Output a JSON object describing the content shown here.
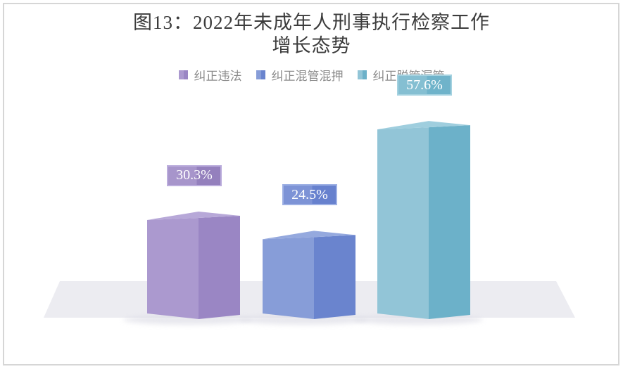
{
  "frame": {
    "background": "#ffffff",
    "border_color": "#d6d6d6"
  },
  "chart_data": {
    "type": "bar",
    "subtype": "3d-clustered-column",
    "title": "图13：2022年未成年人刑事执行检察工作增长态势",
    "title_lines": [
      "图13：2022年未成年人刑事执行检察工作",
      "增长态势"
    ],
    "title_color": "#3c3c3c",
    "unit": "%",
    "legend_position": "top",
    "legend_text_color": "#8c8c8c",
    "axes": {
      "x_visible": false,
      "y_visible": false,
      "gridlines": false
    },
    "ylim": [
      0,
      65
    ],
    "floor_color": "#ececf1",
    "shadow_color": "#d9d9e3",
    "categories": [
      "纠正违法",
      "纠正混管混押",
      "纠正脱管漏管"
    ],
    "values": [
      30.3,
      24.5,
      57.6
    ],
    "series": [
      {
        "name": "纠正违法",
        "value": 30.3,
        "label": "30.3%",
        "color_left": "#ab99cf",
        "color_right": "#9a86c4",
        "color_top": "#b7a8d8",
        "label_bg_left": "#a795cb",
        "label_bg_right": "#9480bd",
        "label_border": "#bcaedd",
        "label_text_color": "#ffffff"
      },
      {
        "name": "纠正混管混押",
        "value": 24.5,
        "label": "24.5%",
        "color_left": "#879dd8",
        "color_right": "#6a84ce",
        "color_top": "#95a9de",
        "label_bg_left": "#7d93d6",
        "label_bg_right": "#6781ce",
        "label_border": "#9db0e4",
        "label_text_color": "#ffffff"
      },
      {
        "name": "纠正脱管漏管",
        "value": 57.6,
        "label": "57.6%",
        "color_left": "#92c5d7",
        "color_right": "#6cb1c9",
        "color_top": "#9fcede",
        "label_bg_left": "#85bfd2",
        "label_bg_right": "#6fb3ca",
        "label_border": "#a5d2e0",
        "label_text_color": "#ffffff"
      }
    ]
  }
}
